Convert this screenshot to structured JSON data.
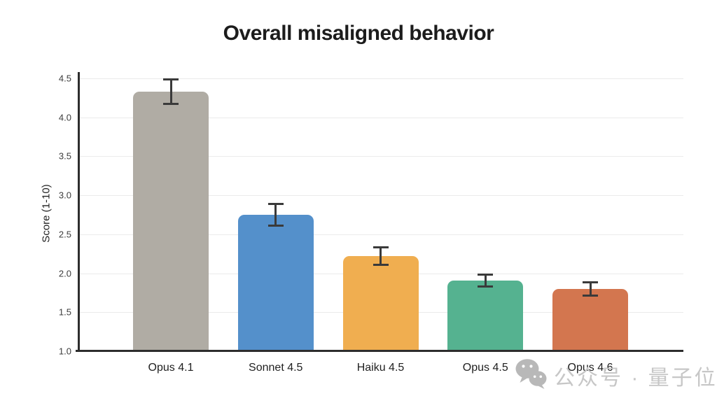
{
  "title": "Overall misaligned behavior",
  "watermark": {
    "icon": "wechat-icon",
    "text": "公众号 · 量子位",
    "color": "#c7c7c7"
  },
  "chart_data": {
    "type": "bar",
    "title": "Overall misaligned behavior",
    "xlabel": "",
    "ylabel": "Score (1-10)",
    "categories": [
      "Opus 4.1",
      "Sonnet 4.5",
      "Haiku 4.5",
      "Opus 4.5",
      "Opus 4.6"
    ],
    "values": [
      4.33,
      2.75,
      2.22,
      1.91,
      1.8
    ],
    "error_bars": [
      0.16,
      0.14,
      0.12,
      0.08,
      0.09
    ],
    "bar_colors": [
      "#b0aca4",
      "#5490cb",
      "#f0ae50",
      "#55b290",
      "#d3764f"
    ],
    "error_color": "#3a3a3a",
    "ylim": [
      1.0,
      4.65
    ],
    "yticks": [
      1.0,
      1.5,
      2.0,
      2.5,
      3.0,
      3.5,
      4.0,
      4.5
    ],
    "grid": true,
    "legend": "none"
  }
}
